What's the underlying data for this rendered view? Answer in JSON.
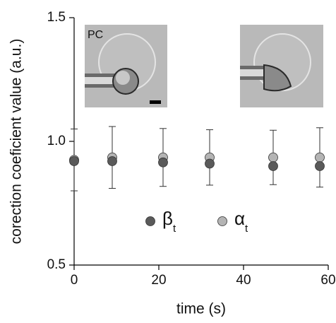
{
  "chart_data": {
    "type": "scatter",
    "x_label": "time (s)",
    "y_label": "corection coeficient value (a.u.)",
    "x": [
      0,
      9,
      21,
      32,
      47,
      58
    ],
    "series": [
      {
        "name": "β",
        "name_subscript": "t",
        "color": "#5a5a5a",
        "values": [
          0.92,
          0.92,
          0.915,
          0.91,
          0.9,
          0.9
        ]
      },
      {
        "name": "α",
        "name_subscript": "t",
        "color": "#b4b4b4",
        "values": [
          0.925,
          0.935,
          0.935,
          0.935,
          0.935,
          0.935
        ],
        "errors": [
          0.125,
          0.125,
          0.117,
          0.112,
          0.11,
          0.12
        ]
      }
    ],
    "xlim": [
      0,
      60
    ],
    "ylim": [
      0.5,
      1.5
    ],
    "xticks": [
      0,
      20,
      40,
      60
    ],
    "yticks": [
      0.5,
      {
        "value": 1,
        "label": "1.0"
      },
      1.5
    ],
    "inset_label": "PC"
  }
}
